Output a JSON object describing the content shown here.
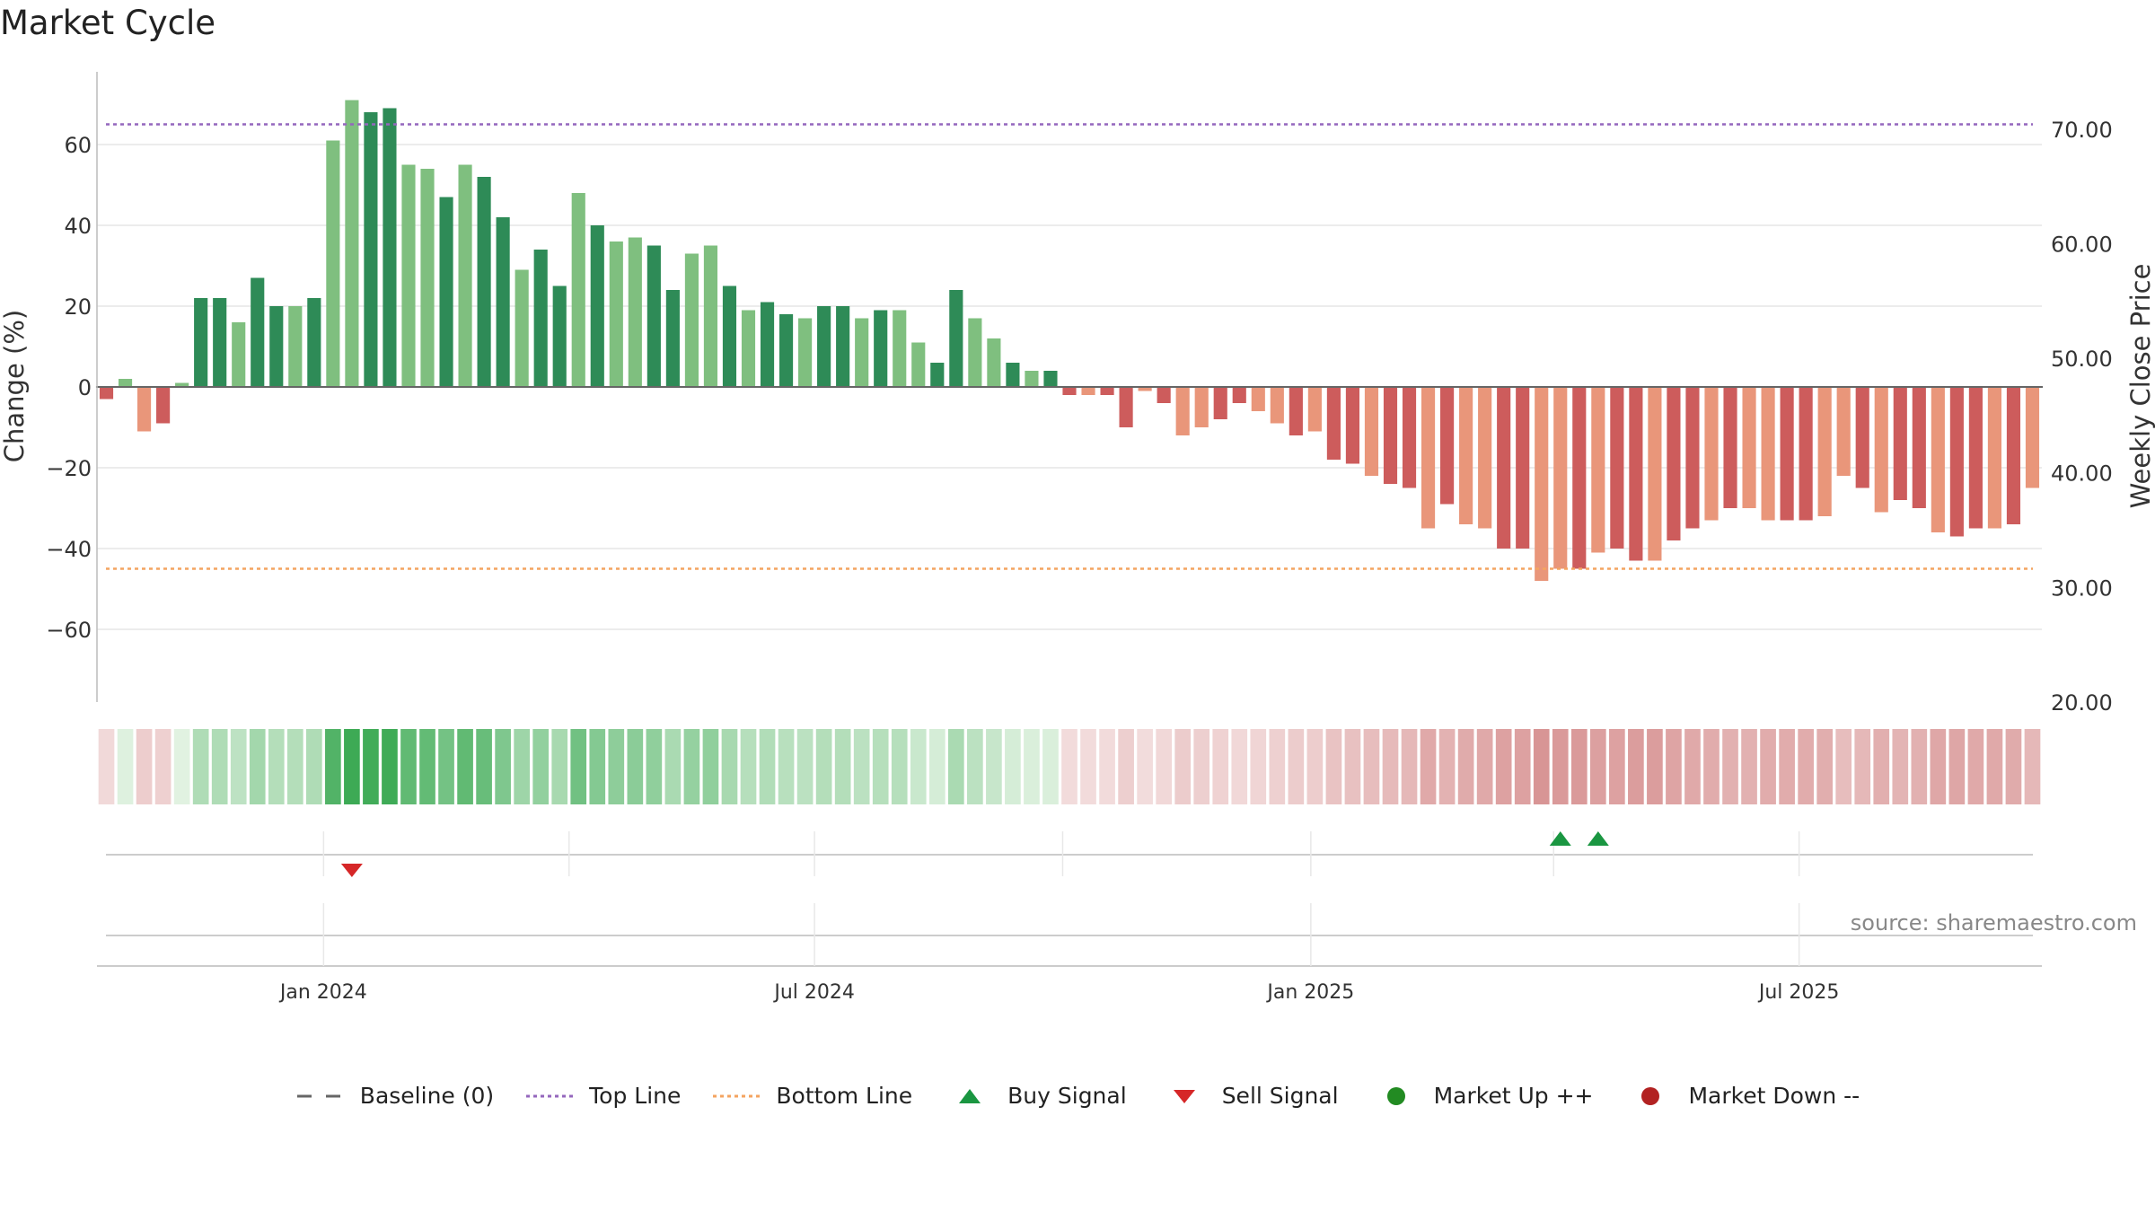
{
  "colors": {
    "up_strong": "#2e8b57",
    "up_light": "#7fbf7f",
    "down_strong": "#cd5c5c",
    "down_light": "#e9967a",
    "top_line": "#9467bd",
    "bottom_line": "#f4a460",
    "baseline": "#666666",
    "buy_signal": "#1a9641",
    "sell_signal": "#d62728",
    "market_up": "#228b22",
    "market_down": "#b22222",
    "grid": "#e6e6e6"
  },
  "chart_data": {
    "type": "bar",
    "title": "Market Cycle",
    "ylabel_left": "Change (%)",
    "ylabel_right": "Weekly Close Price",
    "ylim_left": [
      -78,
      78
    ],
    "yticks_left": [
      "60",
      "40",
      "20",
      "0",
      "−20",
      "−40",
      "−60"
    ],
    "yticks_left_values": [
      60,
      40,
      20,
      0,
      -20,
      -40,
      -60
    ],
    "yticks_right": [
      "70.00",
      "60.00",
      "50.00",
      "40.00",
      "30.00",
      "20.00"
    ],
    "yticks_right_values": [
      70,
      60,
      50,
      40,
      30,
      20
    ],
    "ylim_right": [
      20,
      75
    ],
    "top_line": 65,
    "bottom_line": -45,
    "baseline": 0,
    "x_start": "2023-10-09",
    "x_interval": "week",
    "x_tick_labels": [
      "Jan 2024",
      "Jul 2024",
      "Jan 2025",
      "Jul 2025"
    ],
    "x_tick_dates": [
      "2024-01-01",
      "2024-07-01",
      "2025-01-01",
      "2025-07-01"
    ],
    "values": [
      -3,
      2,
      -11,
      -9,
      1,
      22,
      22,
      16,
      27,
      20,
      20,
      22,
      61,
      71,
      68,
      69,
      55,
      54,
      47,
      55,
      52,
      42,
      29,
      34,
      25,
      48,
      40,
      36,
      37,
      35,
      24,
      33,
      35,
      25,
      19,
      21,
      18,
      17,
      20,
      20,
      17,
      19,
      19,
      11,
      6,
      24,
      17,
      12,
      6,
      4,
      4,
      -2,
      -2,
      -2,
      -10,
      -1,
      -4,
      -12,
      -10,
      -8,
      -4,
      -6,
      -9,
      -12,
      -11,
      -18,
      -19,
      -22,
      -24,
      -25,
      -35,
      -29,
      -34,
      -35,
      -40,
      -40,
      -48,
      -45,
      -45,
      -41,
      -40,
      -43,
      -43,
      -38,
      -35,
      -33,
      -30,
      -30,
      -33,
      -33,
      -33,
      -32,
      -22,
      -25,
      -31,
      -28,
      -30,
      -36,
      -37,
      -35,
      -35,
      -34,
      -25
    ],
    "buy_signals": [
      "2025-03-31",
      "2025-04-14"
    ],
    "sell_signals": [
      "2024-01-08"
    ],
    "legend": [
      {
        "label": "Baseline (0)",
        "symbol": "dash"
      },
      {
        "label": "Top Line",
        "symbol": "dotted-purple"
      },
      {
        "label": "Bottom Line",
        "symbol": "dotted-orange"
      },
      {
        "label": "Buy Signal",
        "symbol": "triangle-up"
      },
      {
        "label": "Sell Signal",
        "symbol": "triangle-down"
      },
      {
        "label": "Market Up ++",
        "symbol": "circle-green"
      },
      {
        "label": "Market Down --",
        "symbol": "circle-red"
      }
    ],
    "source": "source: sharemaestro.com"
  }
}
